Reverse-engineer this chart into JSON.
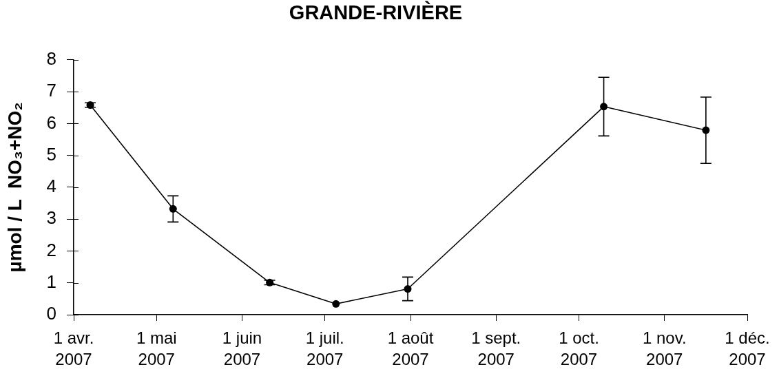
{
  "chart_data": {
    "type": "line",
    "title": "GRANDE-RIVIÈRE",
    "ylabel": "µmol / L  NO₃+NO₂",
    "x": [
      "2007-04-07",
      "2007-05-07",
      "2007-06-11",
      "2007-07-05",
      "2007-07-31",
      "2007-10-10",
      "2007-11-16"
    ],
    "values": [
      6.58,
      3.32,
      1.01,
      0.34,
      0.81,
      6.53,
      5.79
    ],
    "errors": [
      0.07,
      0.41,
      0.07,
      null,
      0.37,
      0.92,
      1.04
    ],
    "color": "#000000",
    "marker": "circle",
    "line_style": "solid",
    "xlim": [
      "2007-04-01",
      "2007-12-01"
    ],
    "xticks": [
      {
        "value": "2007-04-01",
        "label": "1 avr. 2007"
      },
      {
        "value": "2007-05-01",
        "label": "1 mai 2007"
      },
      {
        "value": "2007-06-01",
        "label": "1 juin 2007"
      },
      {
        "value": "2007-07-01",
        "label": "1 juil. 2007"
      },
      {
        "value": "2007-08-01",
        "label": "1 août 2007"
      },
      {
        "value": "2007-09-01",
        "label": "1 sept. 2007"
      },
      {
        "value": "2007-10-01",
        "label": "1 oct. 2007"
      },
      {
        "value": "2007-11-01",
        "label": "1 nov. 2007"
      },
      {
        "value": "2007-12-01",
        "label": "1 déc. 2007"
      }
    ],
    "ylim": [
      0,
      8
    ],
    "yticks": [
      0,
      1,
      2,
      3,
      4,
      5,
      6,
      7,
      8
    ]
  }
}
